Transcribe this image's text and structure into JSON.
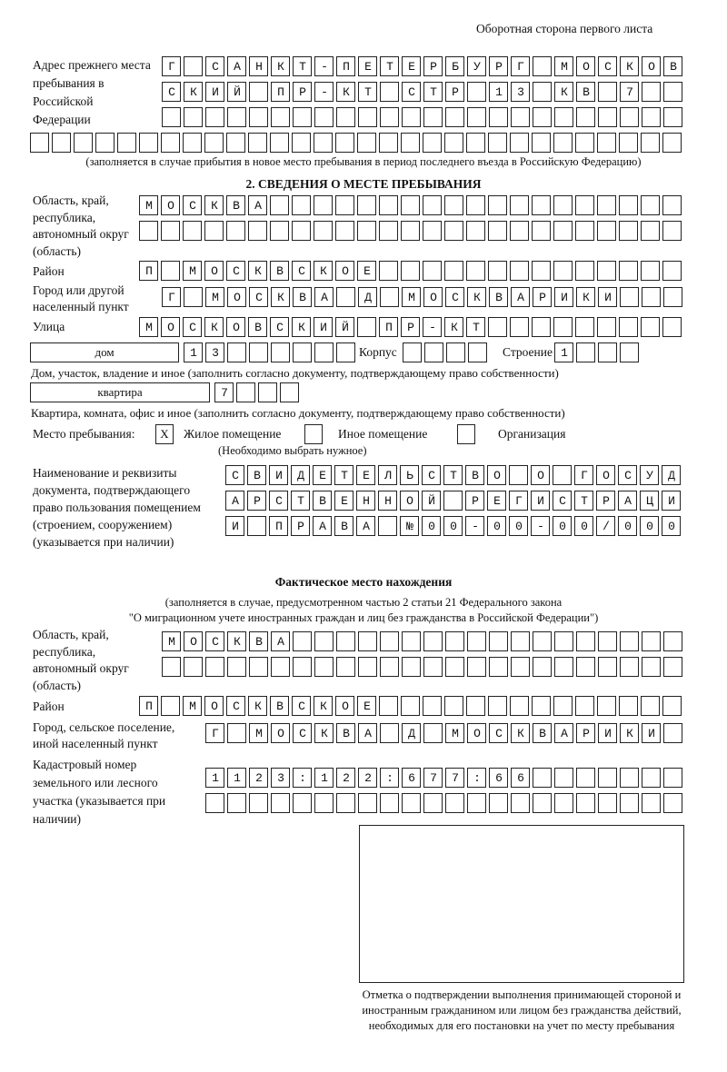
{
  "header": "Оборотная сторона первого листа",
  "previous_address": {
    "label": "Адрес прежнего места пребывания в Российской Федерации",
    "row1": "Г САНКТ-ПЕТЕРБУРГ МОСКОВ",
    "row2": "СКИЙ ПР-КТ СТР 13 КВ 7",
    "row3": "",
    "row4": "",
    "note": "(заполняется в случае прибытия в новое место пребывания в период последнего въезда в Российскую Федерацию)"
  },
  "section2": {
    "title": "2. СВЕДЕНИЯ О МЕСТЕ ПРЕБЫВАНИЯ",
    "region_label": "Область, край, республика, автономный округ (область)",
    "region_row1": "МОСКВА",
    "region_row2": "",
    "district_label": "Район",
    "district": "П МОСКВСКОЕ",
    "city_label": "Город или другой населенный пункт",
    "city": "Г МОСКВА Д МОСКВАРИКИ",
    "street_label": "Улица",
    "street": "МОСКОВСКИЙ ПР-КТ",
    "house_type": "дом",
    "house": "13",
    "korpus_label": "Корпус",
    "korpus": "",
    "building_label": "Строение",
    "building": "1",
    "house_note": "Дом, участок, владение и иное (заполнить согласно документу, подтверждающему право собственности)",
    "flat_type": "квартира",
    "flat": "7",
    "flat_note": "Квартира, комната, офис и иное (заполнить согласно документу, подтверждающему право собственности)",
    "place_label": "Место пребывания:",
    "opt_residential": {
      "mark": "X",
      "label": "Жилое помещение"
    },
    "opt_other": {
      "mark": "",
      "label": "Иное помещение"
    },
    "opt_org": {
      "mark": "",
      "label": "Организация"
    },
    "choose_note": "(Необходимо выбрать нужное)",
    "doc_label": "Наименование и реквизиты документа, подтверждающего право пользования помещением (строением, сооружением) (указывается при наличии)",
    "doc_row1": "СВИДЕТЕЛЬСТВО О ГОСУД",
    "doc_row2": "АРСТВЕННОЙ РЕГИСТРАЦИ",
    "doc_row3": "И ПРАВА №00-00-00/000"
  },
  "actual": {
    "title": "Фактическое место нахождения",
    "note1": "(заполняется в случае, предусмотренном частью 2 статьи 21 Федерального закона",
    "note2": "\"О миграционном учете иностранных граждан и лиц без гражданства в Российской Федерации\")",
    "region_label": "Область, край, республика, автономный округ (область)",
    "region_row1": "МОСКВА",
    "region_row2": "",
    "district_label": "Район",
    "district": "П МОСКВСКОЕ",
    "city_label": "Город, сельское поселение, иной населенный пункт",
    "city": "Г МОСКВА Д МОСКВАРИКИ",
    "cadastre_label": "Кадастровый номер земельного или лесного участка (указывается при наличии)",
    "cadastre_row1": "1123:122:677:66",
    "cadastre_row2": ""
  },
  "stamp_caption": "Отметка о подтверждении выполнения принимающей стороной и иностранным гражданином или лицом без гражданства действий, необходимых для его постановки на учет по месту пребывания"
}
